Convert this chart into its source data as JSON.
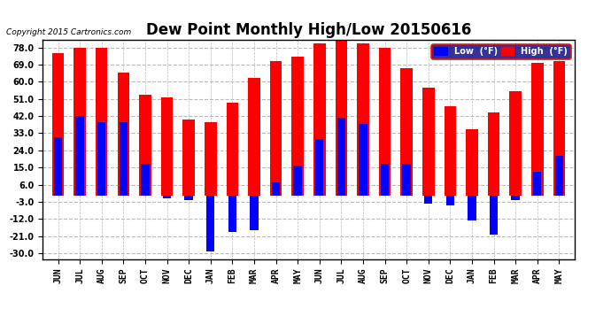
{
  "title": "Dew Point Monthly High/Low 20150616",
  "copyright": "Copyright 2015 Cartronics.com",
  "months": [
    "JUN",
    "JUL",
    "AUG",
    "SEP",
    "OCT",
    "NOV",
    "DEC",
    "JAN",
    "FEB",
    "MAR",
    "APR",
    "MAY",
    "JUN",
    "JUL",
    "AUG",
    "SEP",
    "OCT",
    "NOV",
    "DEC",
    "JAN",
    "FEB",
    "MAR",
    "APR",
    "MAY"
  ],
  "high": [
    75,
    78,
    78,
    65,
    53,
    52,
    40,
    39,
    49,
    62,
    71,
    73,
    80,
    82,
    80,
    78,
    67,
    57,
    47,
    35,
    44,
    55,
    70,
    71
  ],
  "low": [
    31,
    42,
    39,
    39,
    17,
    -1,
    -2,
    -29,
    -19,
    -18,
    7,
    16,
    30,
    41,
    38,
    17,
    17,
    -4,
    -5,
    -13,
    -20,
    -2,
    13,
    21
  ],
  "high_color": "#FF0000",
  "low_color": "#0000FF",
  "bg_color": "#FFFFFF",
  "grid_color": "#BBBBBB",
  "ylim": [
    -33,
    82
  ],
  "yticks": [
    -30.0,
    -21.0,
    -12.0,
    -3.0,
    6.0,
    15.0,
    24.0,
    33.0,
    42.0,
    51.0,
    60.0,
    69.0,
    78.0
  ],
  "title_fontsize": 12,
  "label_fontsize": 7,
  "tick_fontsize": 7,
  "legend_low_label": "Low  (°F)",
  "legend_high_label": "High  (°F)"
}
